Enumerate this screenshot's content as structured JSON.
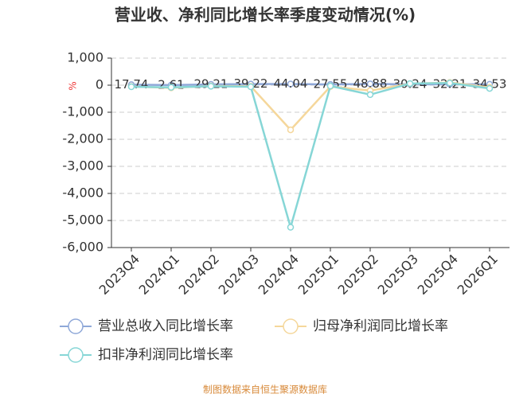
{
  "chart_data": {
    "type": "line",
    "title": "营业收、净利同比增长率季度变动情况(%)",
    "y_label": "%",
    "categories": [
      "2023Q4",
      "2024Q1",
      "2024Q2",
      "2024Q3",
      "2024Q4",
      "2025Q1",
      "2025Q2",
      "2025Q3",
      "2025Q4",
      "2026Q1"
    ],
    "series": [
      {
        "name": "营业总收入同比增长率",
        "color": "#8fa8d8",
        "values": [
          17.74,
          2.61,
          29.21,
          39.22,
          44.04,
          27.55,
          48.88,
          30.24,
          32.21,
          34.53
        ],
        "show_labels": true
      },
      {
        "name": "归母净利润同比增长率",
        "color": "#f5d79b",
        "values": [
          -50,
          -100,
          -30,
          -40,
          -1650,
          -50,
          -200,
          50,
          100,
          -80
        ]
      },
      {
        "name": "扣非净利润同比增长率",
        "color": "#86d6d6",
        "values": [
          -60,
          -80,
          -40,
          -60,
          -5250,
          -30,
          -350,
          60,
          80,
          -120
        ]
      }
    ],
    "ylim": [
      -6000,
      1000
    ],
    "yticks": [
      {
        "value": 1000,
        "label": "1,000"
      },
      0,
      {
        "value": -1000,
        "label": "-1,000"
      },
      {
        "value": -2000,
        "label": "-2,000"
      },
      {
        "value": -3000,
        "label": "-3,000"
      },
      {
        "value": -4000,
        "label": "-4,000"
      },
      {
        "value": -5000,
        "label": "-5,000"
      },
      {
        "value": -6000,
        "label": "-6,000"
      }
    ],
    "grid": true,
    "footer": "制图数据来自恒生聚源数据库"
  }
}
